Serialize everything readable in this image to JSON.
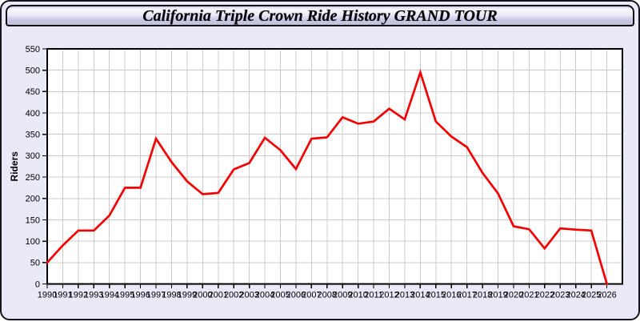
{
  "window": {
    "title": "California Triple Crown Ride History GRAND TOUR"
  },
  "colors": {
    "window_background": "#e9e9f7",
    "window_border": "#15151c",
    "titlebar_gradient_top": "#f7f7fd",
    "titlebar_gradient_bottom": "#c1c1dd",
    "plot_background": "#ffffff",
    "grid": "#cccccc",
    "axis": "#000000",
    "line": "#f40000",
    "text": "#000000"
  },
  "chart_data": {
    "type": "line",
    "title": "California Triple Crown Ride History GRAND TOUR",
    "xlabel": "",
    "ylabel": "Riders",
    "x": [
      1990,
      1991,
      1992,
      1993,
      1994,
      1995,
      1996,
      1997,
      1998,
      1999,
      2000,
      2001,
      2002,
      2003,
      2004,
      2005,
      2006,
      2007,
      2008,
      2009,
      2010,
      2011,
      2012,
      2013,
      2014,
      2015,
      2016,
      2017,
      2018,
      2019,
      2020,
      2021,
      2022,
      2023,
      2024,
      2025,
      2026
    ],
    "series": [
      {
        "name": "Riders",
        "color": "#f40000",
        "values": [
          50,
          90,
          125,
          125,
          160,
          225,
          225,
          340,
          285,
          240,
          210,
          213,
          268,
          283,
          342,
          313,
          269,
          340,
          343,
          390,
          375,
          380,
          410,
          385,
          495,
          380,
          345,
          320,
          260,
          212,
          135,
          128,
          83,
          130,
          127,
          125,
          0
        ]
      }
    ],
    "ylim": [
      0,
      550
    ],
    "xlim": [
      1990,
      2027
    ],
    "y_tick_step": 50,
    "grid": true,
    "legend_position": "none"
  }
}
